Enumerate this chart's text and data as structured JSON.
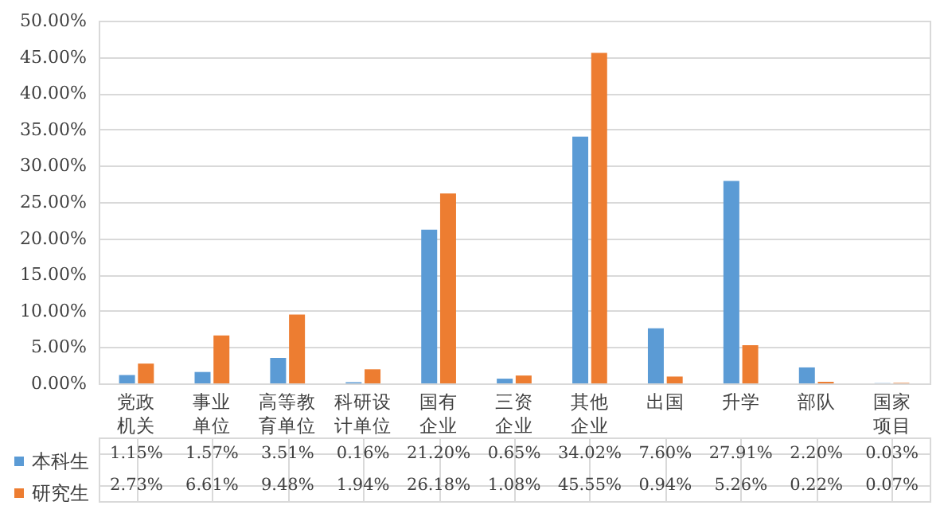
{
  "chart_data": {
    "type": "bar",
    "categories": [
      "党政机关",
      "事业单位",
      "高等教育单位",
      "科研设计单位",
      "国有企业",
      "三资企业",
      "其他企业",
      "出国",
      "升学",
      "部队",
      "国家项目"
    ],
    "series": [
      {
        "name": "本科生",
        "color": "#5b9bd5",
        "values": [
          1.15,
          1.57,
          3.51,
          0.16,
          21.2,
          0.65,
          34.02,
          7.6,
          27.91,
          2.2,
          0.03
        ],
        "value_labels": [
          "1.15%",
          "1.57%",
          "3.51%",
          "0.16%",
          "21.20%",
          "0.65%",
          "34.02%",
          "7.60%",
          "27.91%",
          "2.20%",
          "0.03%"
        ]
      },
      {
        "name": "研究生",
        "color": "#ed7d31",
        "values": [
          2.73,
          6.61,
          9.48,
          1.94,
          26.18,
          1.08,
          45.55,
          0.94,
          5.26,
          0.22,
          0.07
        ],
        "value_labels": [
          "2.73%",
          "6.61%",
          "9.48%",
          "1.94%",
          "26.18%",
          "1.08%",
          "45.55%",
          "0.94%",
          "5.26%",
          "0.22%",
          "0.07%"
        ]
      }
    ],
    "ylim": [
      0,
      50
    ],
    "yticks": [
      {
        "value": 0,
        "label": "0.00%"
      },
      {
        "value": 5,
        "label": "5.00%"
      },
      {
        "value": 10,
        "label": "10.00%"
      },
      {
        "value": 15,
        "label": "15.00%"
      },
      {
        "value": 20,
        "label": "20.00%"
      },
      {
        "value": 25,
        "label": "25.00%"
      },
      {
        "value": 30,
        "label": "30.00%"
      },
      {
        "value": 35,
        "label": "35.00%"
      },
      {
        "value": 40,
        "label": "40.00%"
      },
      {
        "value": 45,
        "label": "45.00%"
      },
      {
        "value": 50,
        "label": "50.00%"
      }
    ],
    "grid": "y",
    "legend": "bottom left"
  }
}
